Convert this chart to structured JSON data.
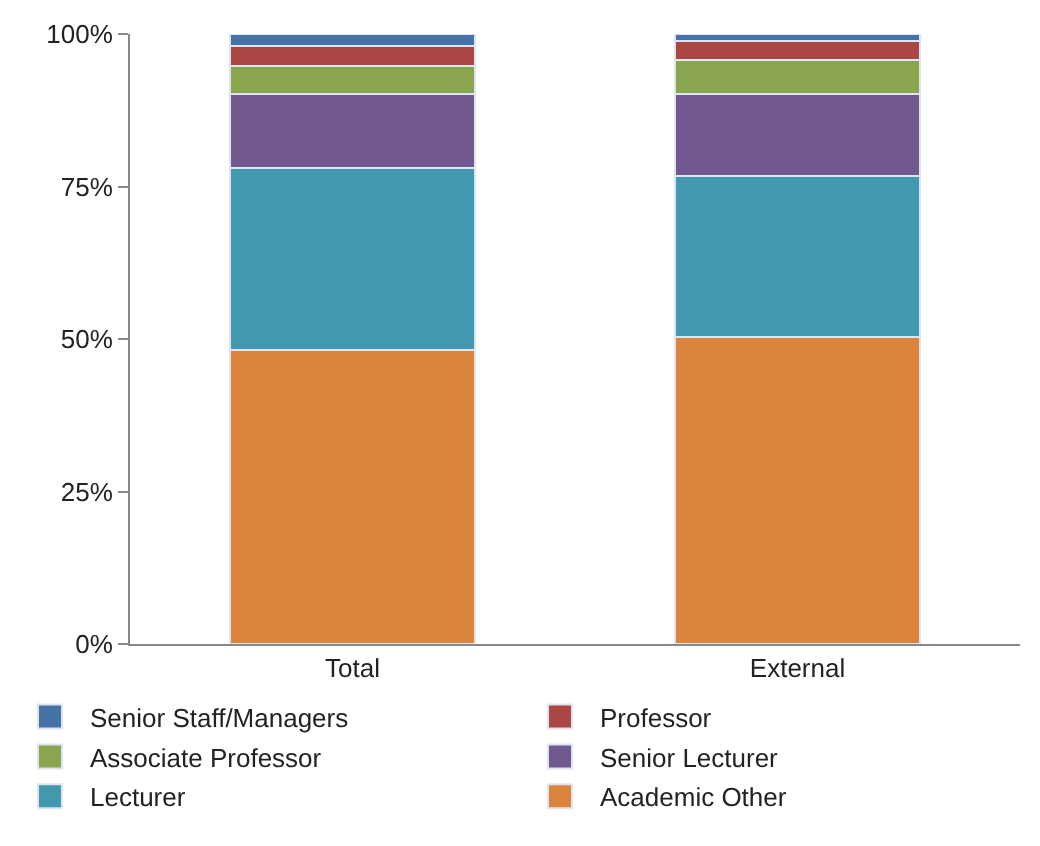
{
  "chart_data": {
    "type": "bar",
    "stacked": true,
    "categories": [
      "Total",
      "External"
    ],
    "series": [
      {
        "name": "Academic Other",
        "color": "#db843d",
        "values": [
          48.2,
          50.4
        ]
      },
      {
        "name": "Lecturer",
        "color": "#4198af",
        "values": [
          29.8,
          26.3
        ]
      },
      {
        "name": "Senior Lecturer",
        "color": "#71588f",
        "values": [
          12.2,
          13.4
        ]
      },
      {
        "name": "Associate Professor",
        "color": "#89a54e",
        "values": [
          4.6,
          5.6
        ]
      },
      {
        "name": "Professor",
        "color": "#aa4643",
        "values": [
          3.2,
          3.2
        ]
      },
      {
        "name": "Senior Staff/Managers",
        "color": "#4572a7",
        "values": [
          2.0,
          1.1
        ]
      }
    ],
    "ylim": [
      0,
      100
    ],
    "yticks": [
      {
        "value": 0,
        "label": "0%"
      },
      {
        "value": 25,
        "label": "25%"
      },
      {
        "value": 50,
        "label": "50%"
      },
      {
        "value": 75,
        "label": "75%"
      },
      {
        "value": 100,
        "label": "100%"
      }
    ],
    "legend": "bottom"
  }
}
